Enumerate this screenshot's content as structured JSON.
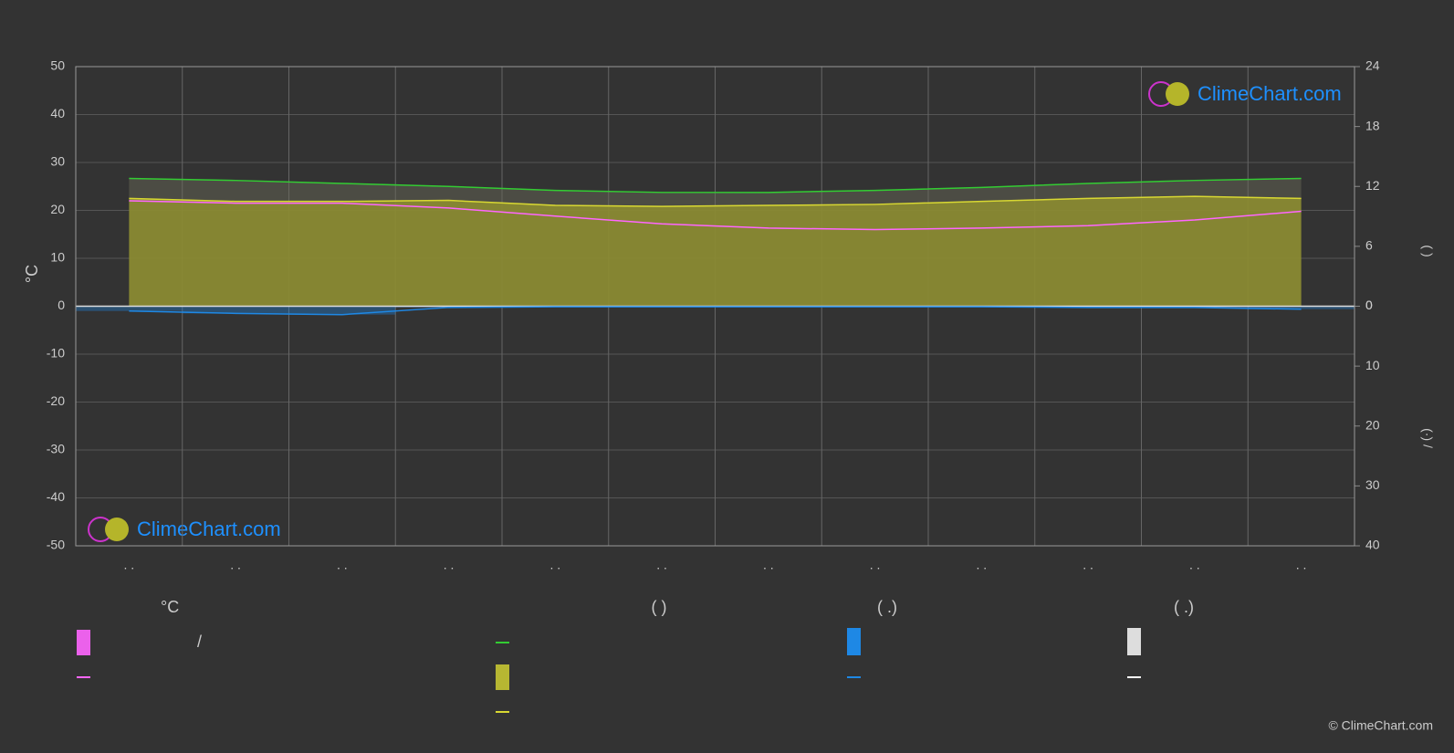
{
  "chart_data": {
    "type": "climate",
    "categories": [
      ". .",
      ". .",
      ". .",
      ". .",
      ". .",
      ". .",
      ". .",
      ". .",
      ". .",
      ". .",
      ". .",
      ". ."
    ],
    "ylabel": "°C",
    "ylim": [
      -50,
      50
    ],
    "yticks": [
      -50,
      -40,
      -30,
      -20,
      -10,
      0,
      10,
      20,
      30,
      40,
      50
    ],
    "y2label": "(    )",
    "y2lim": [
      0,
      24
    ],
    "y2ticks": [
      0,
      6,
      12,
      18,
      24
    ],
    "y3label": "(·)  /",
    "y3lim": [
      0,
      40
    ],
    "y3ticks": [
      0,
      10,
      20,
      30,
      40
    ],
    "grid": true,
    "series": [
      {
        "color": "#33cc33",
        "axis": "y2",
        "values": [
          12.8,
          12.6,
          12.3,
          12.0,
          11.6,
          11.4,
          11.4,
          11.6,
          11.9,
          12.3,
          12.6,
          12.8
        ]
      },
      {
        "color": "#d8d832",
        "axis": "y2",
        "values": [
          10.8,
          10.5,
          10.5,
          10.6,
          10.1,
          10.0,
          10.1,
          10.2,
          10.5,
          10.8,
          11.0,
          10.8
        ]
      },
      {
        "color": "#ff66ff",
        "axis": "y",
        "values": [
          22,
          21.5,
          21.5,
          20.5,
          18.8,
          17.2,
          16.3,
          16,
          16.3,
          16.8,
          18,
          19.8
        ]
      },
      {
        "color": "#1e88e5",
        "axis": "y3",
        "values": [
          0.8,
          1.2,
          1.4,
          0.2,
          0.1,
          0.1,
          0.1,
          0.1,
          0.1,
          0.2,
          0.2,
          0.5
        ]
      }
    ],
    "legend": {
      "headers": [
        "°C",
        "(          )",
        "(   .)",
        "(   .)"
      ],
      "separator": "/"
    },
    "watermark": "ClimeChart.com",
    "copyright": "© ClimeChart.com"
  }
}
